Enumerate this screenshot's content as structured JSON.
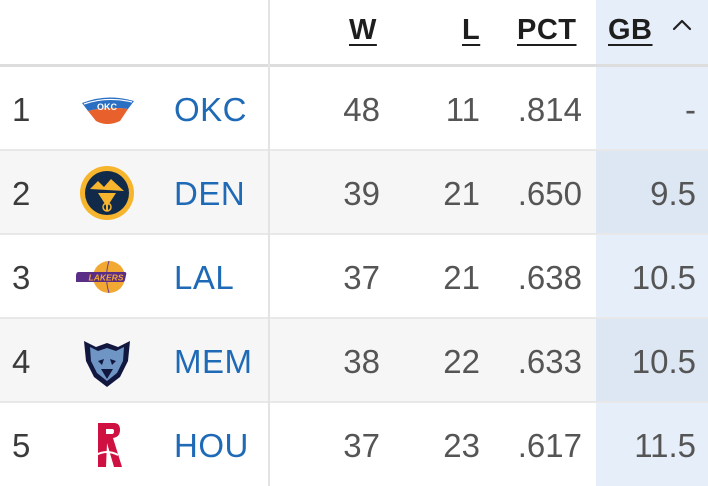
{
  "header": {
    "w": "W",
    "l": "L",
    "pct": "PCT",
    "gb": "GB"
  },
  "sort_icon": "chevron-up-icon",
  "colors": {
    "team_link": "#1f6ab6",
    "gb_column": "#e6eef9"
  },
  "rows": [
    {
      "rank": "1",
      "team": "OKC",
      "logo": "okc-thunder-logo-icon",
      "w": "48",
      "l": "11",
      "pct": ".814",
      "gb": "-"
    },
    {
      "rank": "2",
      "team": "DEN",
      "logo": "den-nuggets-logo-icon",
      "w": "39",
      "l": "21",
      "pct": ".650",
      "gb": "9.5"
    },
    {
      "rank": "3",
      "team": "LAL",
      "logo": "lal-lakers-logo-icon",
      "w": "37",
      "l": "21",
      "pct": ".638",
      "gb": "10.5"
    },
    {
      "rank": "4",
      "team": "MEM",
      "logo": "mem-grizzlies-logo-icon",
      "w": "38",
      "l": "22",
      "pct": ".633",
      "gb": "10.5"
    },
    {
      "rank": "5",
      "team": "HOU",
      "logo": "hou-rockets-logo-icon",
      "w": "37",
      "l": "23",
      "pct": ".617",
      "gb": "11.5"
    }
  ]
}
